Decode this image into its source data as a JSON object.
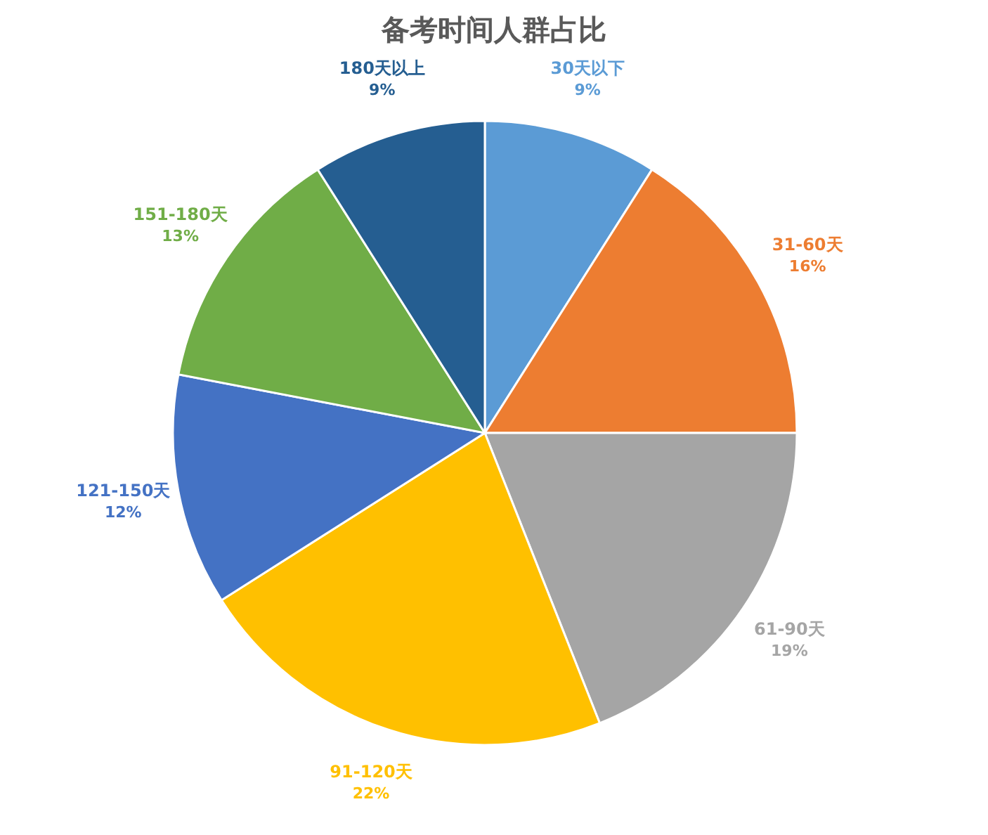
{
  "chart_data": {
    "type": "pie",
    "title": "备考时间人群占比",
    "categories": [
      "30天以下",
      "31-60天",
      "61-90天",
      "91-120天",
      "121-150天",
      "151-180天",
      "180天以上"
    ],
    "values": [
      9,
      16,
      19,
      22,
      12,
      13,
      9
    ],
    "value_labels": [
      "9%",
      "16%",
      "19%",
      "22%",
      "12%",
      "13%",
      "9%"
    ],
    "colors": [
      "#5b9bd5",
      "#ed7d31",
      "#a5a5a5",
      "#ffc000",
      "#4472c4",
      "#70ad47",
      "#255e91"
    ]
  }
}
